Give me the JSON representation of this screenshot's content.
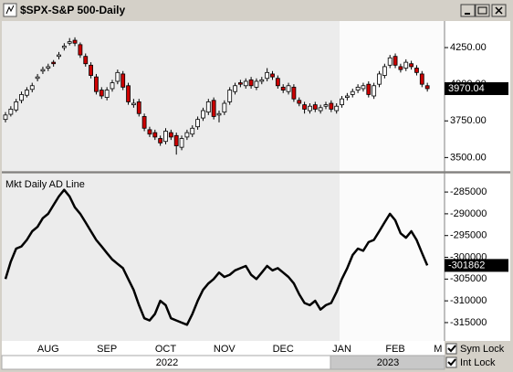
{
  "window": {
    "controls": [
      "Sym Lock",
      "Int Lock"
    ]
  },
  "chart_data": [
    {
      "type": "candlestick",
      "title": "$SPX-S&P 500-Daily",
      "open": [
        3760,
        3795,
        3825,
        3890,
        3925,
        3965,
        4040,
        4090,
        4110,
        4150,
        4190,
        4250,
        4280,
        4300,
        4270,
        4190,
        4130,
        4050,
        3960,
        3910,
        3970,
        4020,
        4070,
        3990,
        3860,
        3880,
        3780,
        3690,
        3670,
        3630,
        3610,
        3670,
        3650,
        3570,
        3640,
        3660,
        3710,
        3770,
        3810,
        3890,
        3790,
        3810,
        3880,
        3950,
        4010,
        3990,
        4030,
        3980,
        4020,
        4040,
        4070,
        4040,
        3980,
        3950,
        3980,
        3890,
        3860,
        3820,
        3860,
        3820,
        3850,
        3870,
        3820,
        3860,
        3910,
        3930,
        3960,
        3970,
        4000,
        3920,
        4000,
        4060,
        4130,
        4190,
        4120,
        4110,
        4140,
        4110,
        4070,
        3990
      ],
      "high": [
        3810,
        3850,
        3900,
        3950,
        3980,
        4010,
        4070,
        4120,
        4140,
        4165,
        4220,
        4280,
        4315,
        4320,
        4285,
        4210,
        4150,
        4070,
        3980,
        3980,
        4030,
        4100,
        4090,
        4010,
        3900,
        3900,
        3800,
        3710,
        3690,
        3650,
        3700,
        3690,
        3670,
        3650,
        3690,
        3720,
        3780,
        3840,
        3900,
        3910,
        3820,
        3890,
        3980,
        4010,
        4030,
        4040,
        4050,
        4040,
        4050,
        4110,
        4090,
        4060,
        4000,
        4010,
        4000,
        3910,
        3880,
        3870,
        3880,
        3860,
        3880,
        3890,
        3870,
        3920,
        3940,
        3970,
        4000,
        4010,
        4020,
        4010,
        4090,
        4140,
        4200,
        4210,
        4140,
        4170,
        4160,
        4130,
        4090,
        4010
      ],
      "low": [
        3740,
        3780,
        3810,
        3870,
        3910,
        3945,
        4020,
        4070,
        4090,
        4120,
        4170,
        4230,
        4265,
        4260,
        4180,
        4120,
        4040,
        3930,
        3900,
        3890,
        3950,
        4000,
        3960,
        3860,
        3840,
        3780,
        3680,
        3640,
        3620,
        3580,
        3590,
        3620,
        3520,
        3550,
        3620,
        3640,
        3690,
        3750,
        3790,
        3760,
        3740,
        3790,
        3860,
        3930,
        3980,
        3970,
        3970,
        3960,
        4000,
        4020,
        4030,
        3970,
        3940,
        3930,
        3880,
        3850,
        3800,
        3800,
        3810,
        3800,
        3830,
        3810,
        3800,
        3840,
        3890,
        3910,
        3940,
        3950,
        3910,
        3900,
        3980,
        4040,
        4110,
        4110,
        4080,
        4090,
        4100,
        4060,
        3980,
        3950
      ],
      "close": [
        3790,
        3830,
        3880,
        3930,
        3960,
        3990,
        4050,
        4100,
        4120,
        4140,
        4200,
        4260,
        4290,
        4280,
        4200,
        4140,
        4060,
        3950,
        3920,
        3960,
        4010,
        4080,
        3980,
        3880,
        3870,
        3800,
        3700,
        3660,
        3640,
        3600,
        3680,
        3640,
        3580,
        3630,
        3670,
        3700,
        3760,
        3820,
        3880,
        3780,
        3800,
        3870,
        3960,
        3990,
        4000,
        4020,
        3990,
        4020,
        4030,
        4080,
        4050,
        3990,
        3960,
        3990,
        3900,
        3870,
        3830,
        3850,
        3830,
        3840,
        3860,
        3830,
        3850,
        3900,
        3920,
        3950,
        3980,
        3990,
        3930,
        3990,
        4070,
        4120,
        4180,
        4130,
        4100,
        4150,
        4120,
        4080,
        4000,
        3970
      ],
      "up_color": "#ffffff",
      "down_color": "#cc0000",
      "last_value": 3970.04,
      "ylim": [
        3415,
        4425
      ],
      "yticks": [
        {
          "value": 3500,
          "label": "3500.00"
        },
        {
          "value": 3750,
          "label": "3750.00"
        },
        {
          "value": 4000,
          "label": "4000.00"
        },
        {
          "value": 4250,
          "label": "4250.00"
        }
      ]
    },
    {
      "type": "line",
      "title": "Mkt Daily AD Line",
      "categories": [
        null,
        null,
        null,
        null,
        null,
        null,
        null,
        null,
        "AUG",
        null,
        null,
        null,
        null,
        null,
        null,
        null,
        null,
        null,
        null,
        "SEP",
        null,
        null,
        null,
        null,
        null,
        null,
        null,
        null,
        null,
        null,
        "OCT",
        null,
        null,
        null,
        null,
        null,
        null,
        null,
        null,
        null,
        null,
        "NOV",
        null,
        null,
        null,
        null,
        null,
        null,
        null,
        null,
        null,
        null,
        "DEC",
        null,
        null,
        null,
        null,
        null,
        null,
        null,
        null,
        null,
        null,
        "JAN",
        null,
        null,
        null,
        null,
        null,
        null,
        null,
        null,
        null,
        "FEB",
        null,
        null,
        null,
        null,
        null,
        null,
        null,
        "M"
      ],
      "values": [
        -305000,
        -301000,
        -298000,
        -297500,
        -296000,
        -294000,
        -293000,
        -291000,
        -290000,
        -288000,
        -286000,
        -284500,
        -286000,
        -288500,
        -290000,
        -292000,
        -294000,
        -296000,
        -297500,
        -299000,
        -300500,
        -301500,
        -302500,
        -305000,
        -307500,
        -311000,
        -314000,
        -314500,
        -313000,
        -310000,
        -311000,
        -314000,
        -314500,
        -315000,
        -315500,
        -313000,
        -310000,
        -307500,
        -306000,
        -305000,
        -303500,
        -304500,
        -304000,
        -303000,
        -302500,
        -302000,
        -304000,
        -305000,
        -303500,
        -302000,
        -303000,
        -302500,
        -303500,
        -304500,
        -306000,
        -308500,
        -310500,
        -311000,
        -310000,
        -312000,
        -311000,
        -310500,
        -308000,
        -305000,
        -302500,
        -299500,
        -298000,
        -298500,
        -296500,
        -296000,
        -294000,
        -292000,
        -290000,
        -291500,
        -294500,
        -295500,
        -294000,
        -296000,
        -299000,
        -301862,
        null,
        null
      ],
      "color": "#000000",
      "last_value": -301862,
      "years": [
        "2022",
        "2023"
      ],
      "ylim": [
        -319000,
        -281200
      ],
      "yticks": [
        -315000,
        -310000,
        -305000,
        -300000,
        -295000,
        -290000,
        -285000
      ]
    }
  ]
}
